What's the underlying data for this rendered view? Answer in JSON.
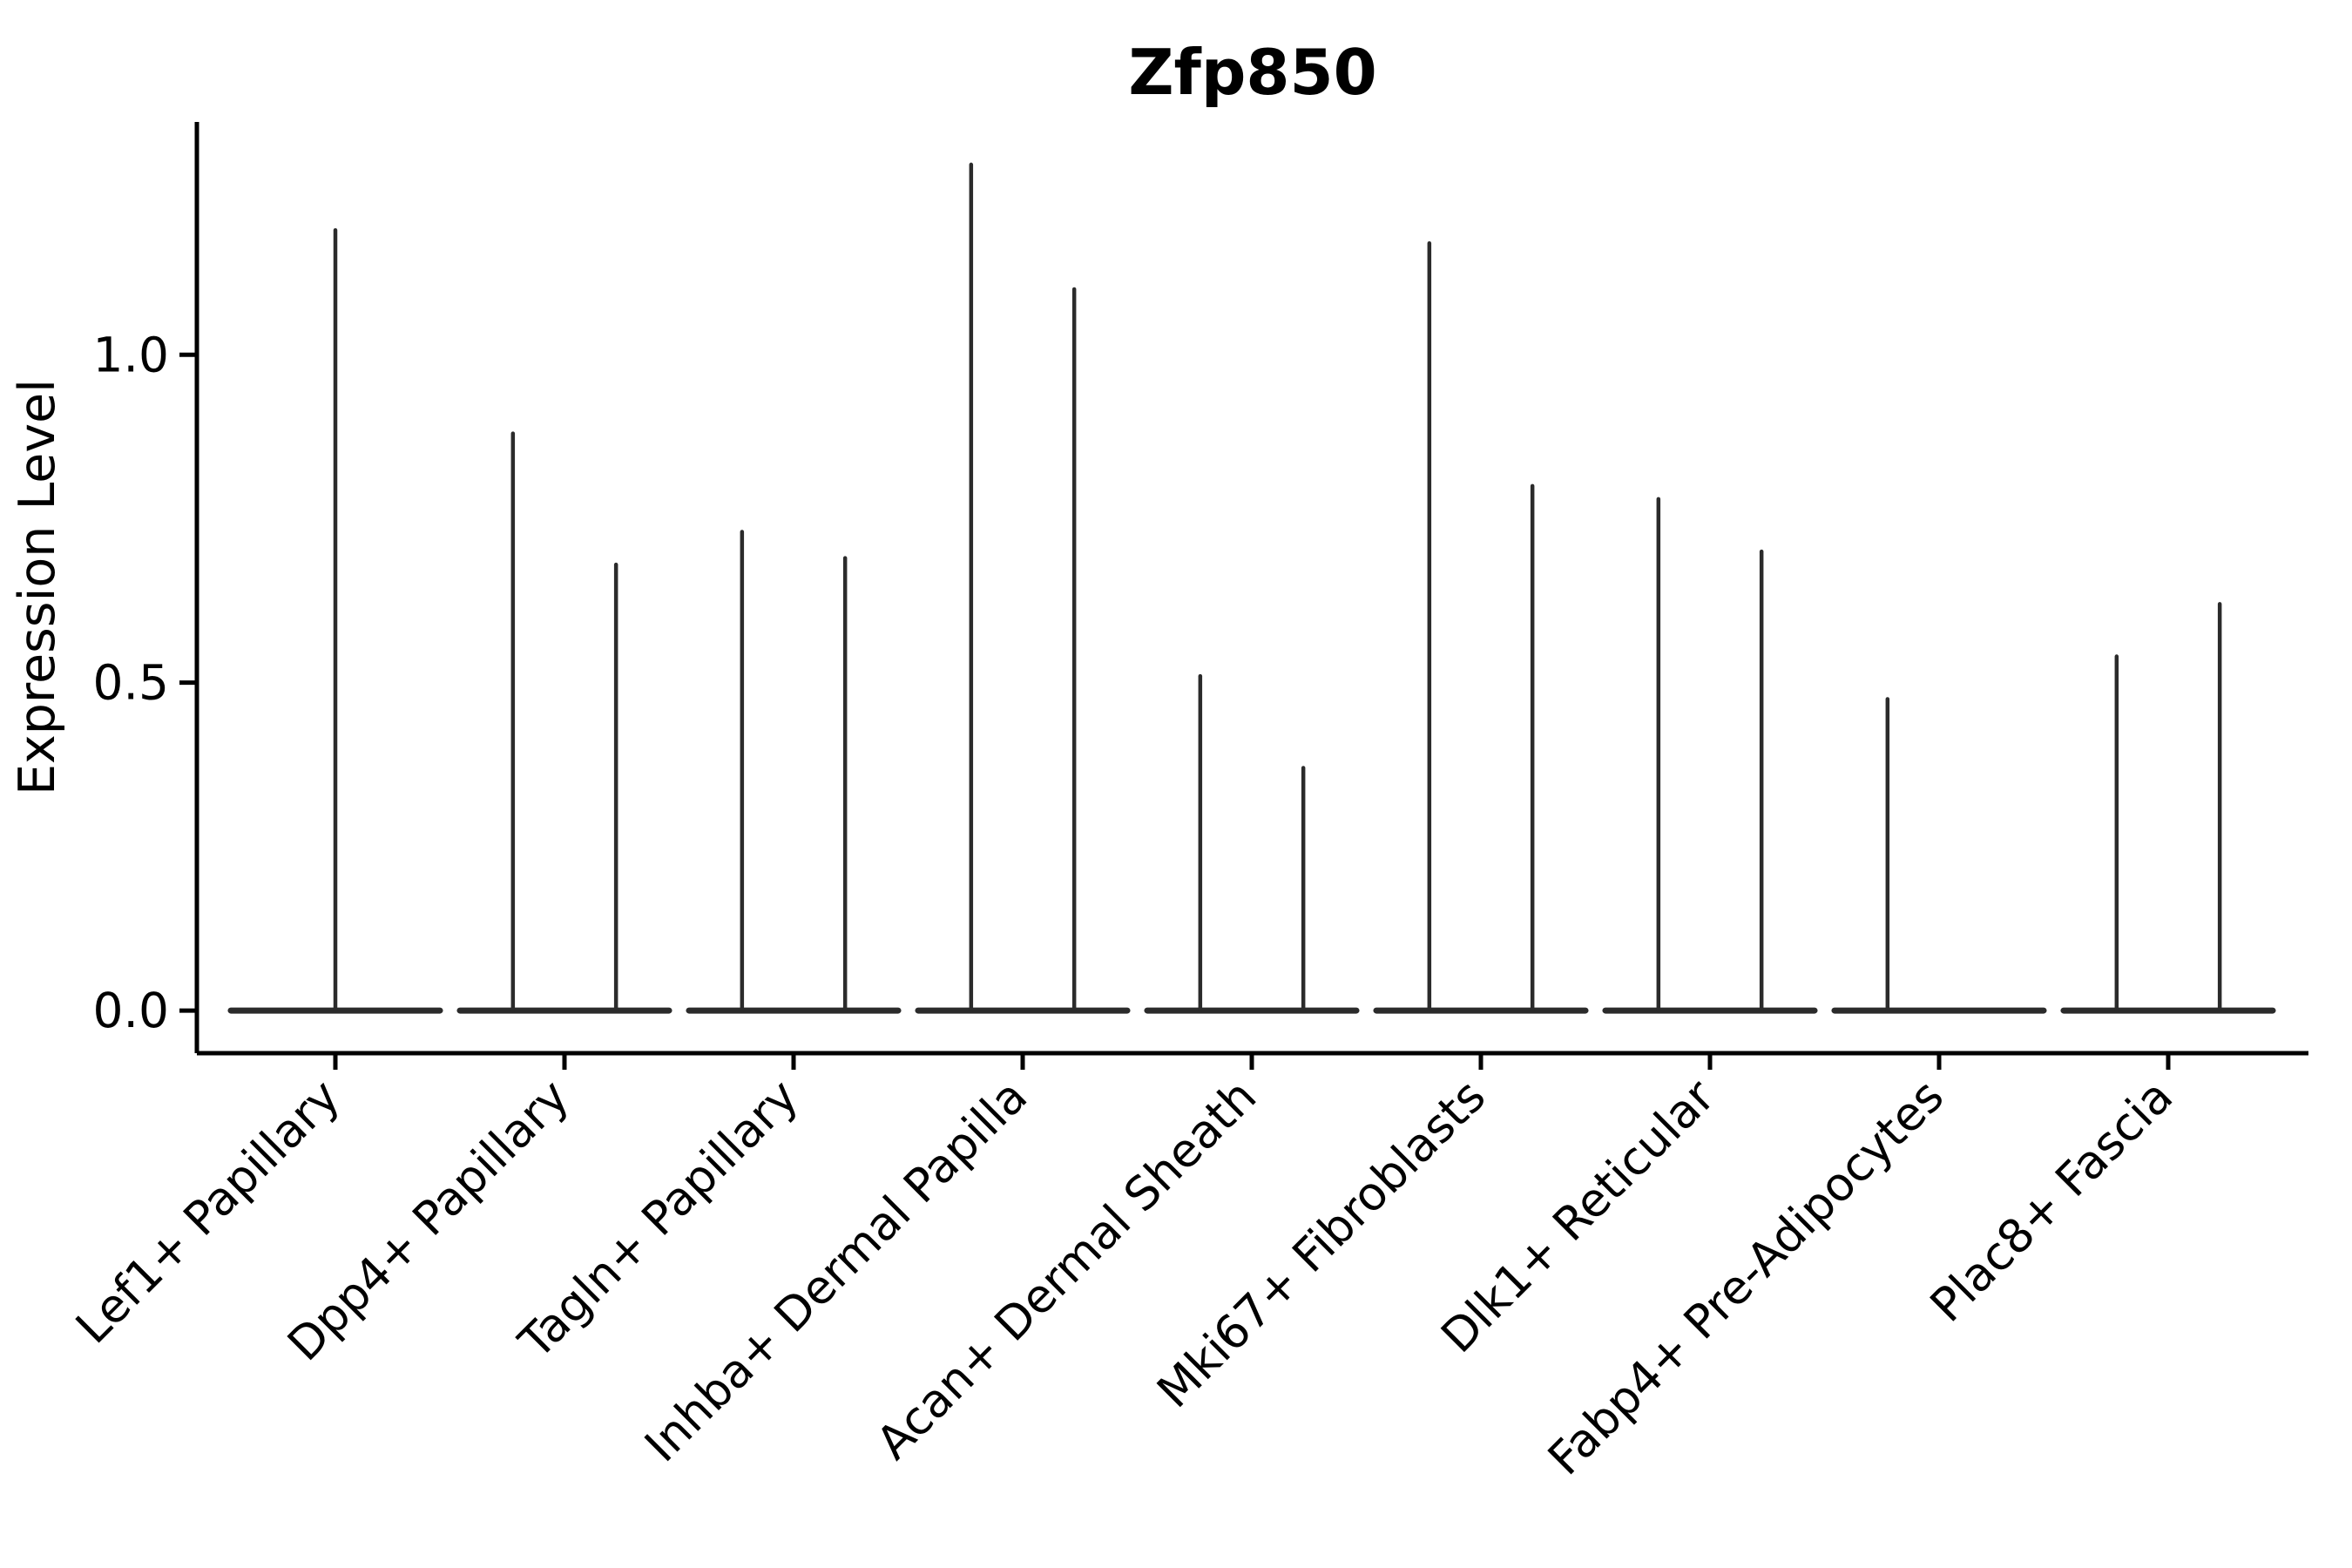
{
  "figure": {
    "background": "#ffffff"
  },
  "chart_data": {
    "type": "violin",
    "title": "Zfp850",
    "ylabel": "Expression Level",
    "xlabel": "",
    "ylim": [
      -0.065,
      1.355
    ],
    "yticks": [
      {
        "value": 0.0,
        "label": "0.0"
      },
      {
        "value": 0.5,
        "label": "0.5"
      },
      {
        "value": 1.0,
        "label": "1.0"
      }
    ],
    "grid": false,
    "legend": null,
    "axis_color": "#000000",
    "ink_color": "#2b2b2b",
    "baseline_value": 0.0,
    "x_label_rotation_deg": 45,
    "categories": [
      {
        "label": "Lef1+ Papillary",
        "violins": [
          {
            "pos": 0.0,
            "max": 1.19
          }
        ]
      },
      {
        "label": "Dpp4+ Papillary",
        "violins": [
          {
            "pos": -0.225,
            "max": 0.88
          },
          {
            "pos": 0.225,
            "max": 0.68
          }
        ]
      },
      {
        "label": "Tagln+ Papillary",
        "violins": [
          {
            "pos": -0.225,
            "max": 0.73
          },
          {
            "pos": 0.225,
            "max": 0.69
          }
        ]
      },
      {
        "label": "Inhba+ Dermal Papilla",
        "violins": [
          {
            "pos": -0.225,
            "max": 1.29
          },
          {
            "pos": 0.225,
            "max": 1.1
          }
        ]
      },
      {
        "label": "Acan+ Dermal Sheath",
        "violins": [
          {
            "pos": -0.225,
            "max": 0.51
          },
          {
            "pos": 0.225,
            "max": 0.37
          }
        ]
      },
      {
        "label": "Mki67+ Fibroblasts",
        "violins": [
          {
            "pos": -0.225,
            "max": 1.17
          },
          {
            "pos": 0.225,
            "max": 0.8
          }
        ]
      },
      {
        "label": "Dlk1+ Reticular",
        "violins": [
          {
            "pos": -0.225,
            "max": 0.78
          },
          {
            "pos": 0.225,
            "max": 0.7
          }
        ]
      },
      {
        "label": "Fabp4+ Pre-Adipocytes",
        "violins": [
          {
            "pos": -0.225,
            "max": 0.475
          }
        ]
      },
      {
        "label": "Plac8+ Fascia",
        "violins": [
          {
            "pos": -0.225,
            "max": 0.54
          },
          {
            "pos": 0.225,
            "max": 0.62
          }
        ]
      }
    ]
  }
}
